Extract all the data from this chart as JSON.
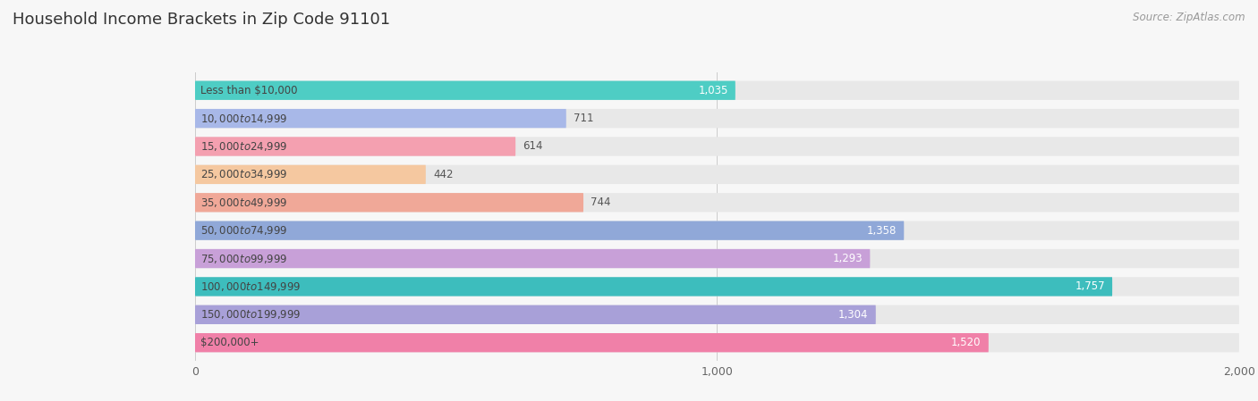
{
  "title": "Household Income Brackets in Zip Code 91101",
  "source": "Source: ZipAtlas.com",
  "categories": [
    "Less than $10,000",
    "$10,000 to $14,999",
    "$15,000 to $24,999",
    "$25,000 to $34,999",
    "$35,000 to $49,999",
    "$50,000 to $74,999",
    "$75,000 to $99,999",
    "$100,000 to $149,999",
    "$150,000 to $199,999",
    "$200,000+"
  ],
  "values": [
    1035,
    711,
    614,
    442,
    744,
    1358,
    1293,
    1757,
    1304,
    1520
  ],
  "bar_colors": [
    "#4ECDC4",
    "#A8B8E8",
    "#F4A0B0",
    "#F5C8A0",
    "#F0A898",
    "#90A8D8",
    "#C8A0D8",
    "#3DBDBD",
    "#A8A0D8",
    "#F080A8"
  ],
  "value_label_inside_color": "#ffffff",
  "value_label_outside_color": "#555555",
  "value_inside_threshold": 900,
  "xlim": [
    0,
    2000
  ],
  "xticks": [
    0,
    1000,
    2000
  ],
  "background_color": "#f7f7f7",
  "bar_bg_color": "#e8e8e8",
  "title_fontsize": 13,
  "cat_fontsize": 8.5,
  "value_fontsize": 8.5,
  "source_fontsize": 8.5
}
